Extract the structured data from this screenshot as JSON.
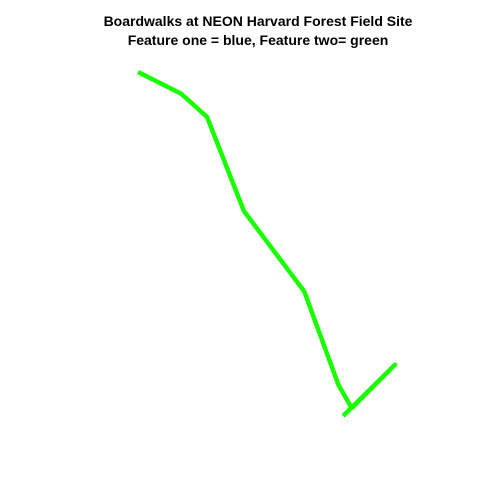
{
  "chart_data": {
    "type": "line",
    "title": "Boardwalks at NEON Harvard Forest Field Site",
    "subtitle": "Feature one = blue, Feature two= green",
    "xlabel": "",
    "ylabel": "",
    "grid": false,
    "axes_visible": false,
    "series": [
      {
        "color": "#1aff00",
        "points": [
          [
            0.0,
            0.0
          ],
          [
            0.168,
            0.063
          ],
          [
            0.269,
            0.131
          ],
          [
            0.412,
            0.404
          ],
          [
            0.647,
            0.638
          ],
          [
            0.78,
            0.91
          ],
          [
            0.832,
            0.977
          ],
          [
            1.0,
            0.851
          ],
          [
            0.798,
            1.0
          ]
        ]
      }
    ],
    "xlim": [
      0.0,
      1.0
    ],
    "ylim": [
      0.0,
      1.0
    ]
  }
}
